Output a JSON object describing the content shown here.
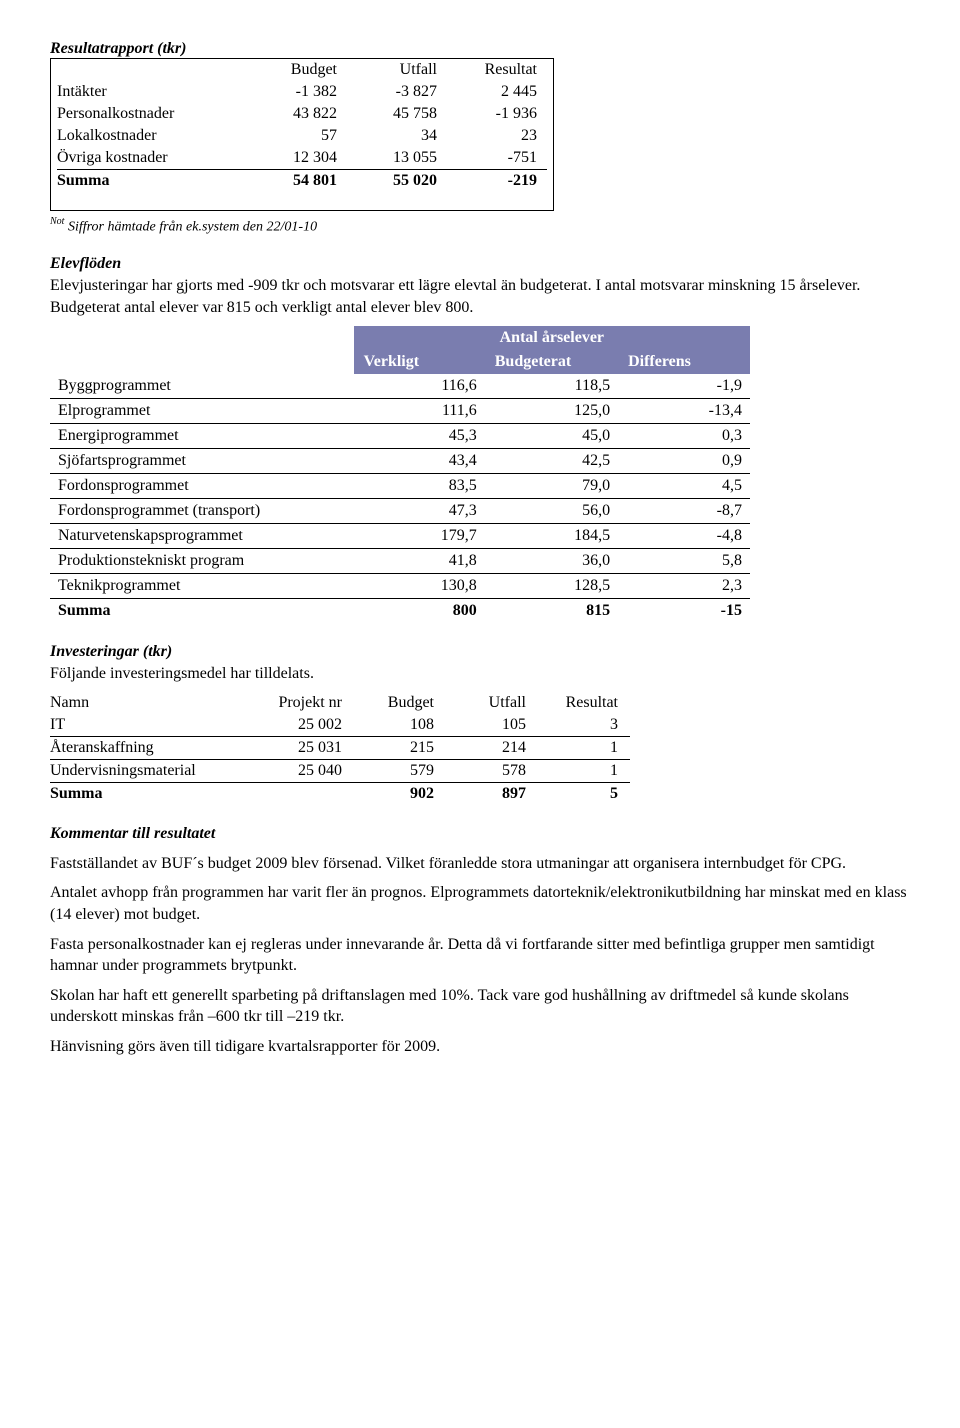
{
  "t1": {
    "title": "Resultatrapport (tkr)",
    "headers": [
      "",
      "Budget",
      "Utfall",
      "Resultat"
    ],
    "rows": [
      [
        "Intäkter",
        "-1 382",
        "-3 827",
        "2 445"
      ],
      [
        "Personalkostnader",
        "43 822",
        "45 758",
        "-1 936"
      ],
      [
        "Lokalkostnader",
        "57",
        "34",
        "23"
      ],
      [
        "Övriga kostnader",
        "12 304",
        "13 055",
        "-751"
      ]
    ],
    "summa": [
      "Summa",
      "54 801",
      "55 020",
      "-219"
    ],
    "note_sup": "Not",
    "note_text": " Siffror hämtade från ek.system den 22/01-10"
  },
  "elev": {
    "heading": "Elevflöden",
    "para": "Elevjusteringar har gjorts med -909 tkr och motsvarar ett lägre elevtal än budgeterat. I antal motsvarar minskning 15 årselever. Budgeterat antal elever var 815 och verkligt antal elever blev 800."
  },
  "t2": {
    "header_bg": "#7a7daf",
    "main_header": "Antal årselever",
    "sub_headers": [
      "",
      "Verkligt",
      "Budgeterat",
      "Differens"
    ],
    "rows": [
      [
        "Byggprogrammet",
        "116,6",
        "118,5",
        "-1,9"
      ],
      [
        "Elprogrammet",
        "111,6",
        "125,0",
        "-13,4"
      ],
      [
        "Energiprogrammet",
        "45,3",
        "45,0",
        "0,3"
      ],
      [
        "Sjöfartsprogrammet",
        "43,4",
        "42,5",
        "0,9"
      ],
      [
        "Fordonsprogrammet",
        "83,5",
        "79,0",
        "4,5"
      ],
      [
        "Fordonsprogrammet (transport)",
        "47,3",
        "56,0",
        "-8,7"
      ],
      [
        "Naturvetenskapsprogrammet",
        "179,7",
        "184,5",
        "-4,8"
      ],
      [
        "Produktionstekniskt program",
        "41,8",
        "36,0",
        "5,8"
      ],
      [
        "Teknikprogrammet",
        "130,8",
        "128,5",
        "2,3"
      ]
    ],
    "summa": [
      "Summa",
      "800",
      "815",
      "-15"
    ]
  },
  "inv": {
    "heading": "Investeringar (tkr)",
    "intro": "Följande investeringsmedel har tilldelats.",
    "headers": [
      "Namn",
      "Projekt nr",
      "Budget",
      "Utfall",
      "Resultat"
    ],
    "rows": [
      [
        "IT",
        "25 002",
        "108",
        "105",
        "3"
      ],
      [
        "Återanskaffning",
        "25 031",
        "215",
        "214",
        "1"
      ],
      [
        "Undervisningsmaterial",
        "25 040",
        "579",
        "578",
        "1"
      ]
    ],
    "summa": [
      "Summa",
      "",
      "902",
      "897",
      "5"
    ]
  },
  "komm": {
    "heading": "Kommentar till resultatet",
    "p1": "Fastställandet av BUF´s  budget 2009 blev försenad. Vilket föranledde stora utmaningar att organisera internbudget för CPG.",
    "p2": "Antalet avhopp från programmen har varit fler än prognos.  Elprogrammets datorteknik/elektronikutbildning har minskat med en klass (14 elever) mot budget.",
    "p3": "Fasta personalkostnader kan ej regleras under innevarande år. Detta då vi fortfarande sitter med befintliga grupper men samtidigt hamnar under programmets brytpunkt.",
    "p4": "Skolan har haft ett generellt sparbeting på driftanslagen med 10%. Tack vare god hushållning av driftmedel så kunde skolans underskott minskas från –600 tkr till –219 tkr.",
    "p5": "Hänvisning görs även till tidigare kvartalsrapporter för 2009."
  }
}
